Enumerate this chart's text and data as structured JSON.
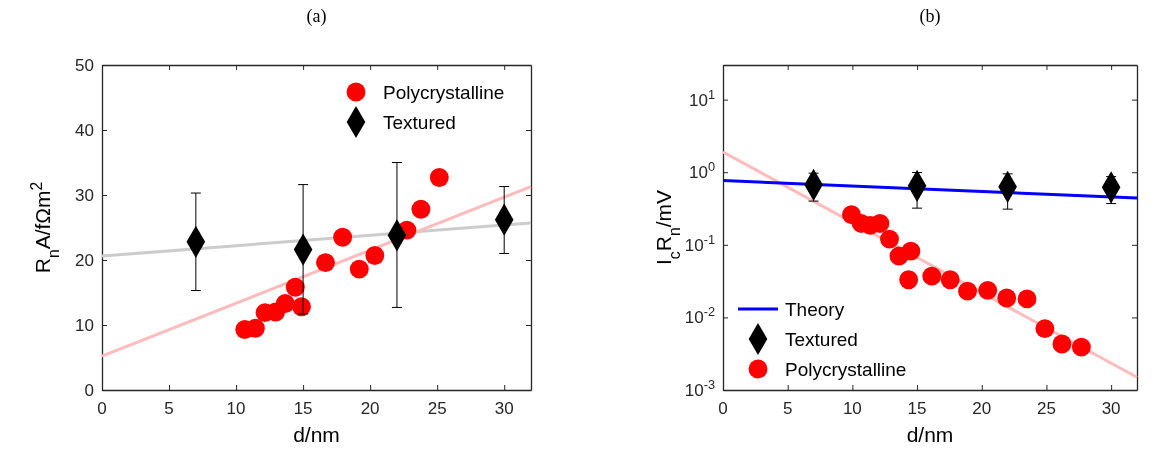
{
  "chart_data": [
    {
      "type": "scatter",
      "title": "(a)",
      "xlabel": "d/nm",
      "ylabel": "R$_{n}$A/fΩm$^{2}$",
      "xlim": [
        0,
        32
      ],
      "xticks": [
        0,
        5,
        10,
        15,
        20,
        25,
        30
      ],
      "ylim": [
        0,
        50
      ],
      "yticks": [
        0,
        10,
        20,
        30,
        40,
        50
      ],
      "grid": false,
      "legend": "top right",
      "series": [
        {
          "type": "line",
          "color": "#cccccc",
          "x": [
            0,
            32
          ],
          "values": [
            20.6,
            25.7
          ],
          "marker": "none",
          "line_style": "solid"
        },
        {
          "type": "line",
          "color": "#ffbbbb",
          "x": [
            0,
            32
          ],
          "values": [
            5.2,
            31.3
          ],
          "marker": "none",
          "line_style": "solid"
        },
        {
          "name": "Polycrystalline",
          "color": "#ff0000",
          "marker": "circle",
          "x": [
            10.65,
            11.44,
            12.16,
            12.95,
            13.67,
            14.42,
            14.88,
            16.67,
            17.95,
            19.19,
            20.35,
            22.74,
            23.79,
            25.16
          ],
          "values": [
            9.3,
            9.5,
            11.9,
            12.0,
            13.3,
            15.8,
            12.8,
            19.6,
            23.5,
            18.6,
            20.7,
            24.6,
            27.8,
            32.7
          ]
        },
        {
          "name": "Textured",
          "color": "#000000",
          "marker": "diamond",
          "x": [
            7,
            15,
            22,
            30
          ],
          "values": [
            22.8,
            21.6,
            23.8,
            26.2
          ],
          "errors": [
            [
              15.3,
              30.3
            ],
            [
              11.7,
              31.6
            ],
            [
              12.7,
              35.0
            ],
            [
              21.0,
              31.3
            ]
          ]
        }
      ]
    },
    {
      "type": "scatter",
      "title": "(b)",
      "xlabel": "d/nm",
      "ylabel": "I$_{c}$R$_{n}$/mV",
      "log": "y",
      "xlim": [
        0,
        32
      ],
      "xticks": [
        0,
        5,
        10,
        15,
        20,
        25,
        30
      ],
      "ylim": [
        0.001,
        30
      ],
      "yticks": [
        {
          "value": 0.001,
          "label": "10$^{-3}$"
        },
        {
          "value": 0.01,
          "label": "10$^{-2}$"
        },
        {
          "value": 0.1,
          "label": "10$^{-1}$"
        },
        {
          "value": 1,
          "label": "10$^{0}$"
        },
        {
          "value": 10,
          "label": "10$^{1}$"
        }
      ],
      "grid": false,
      "legend": "bottom left",
      "series": [
        {
          "type": "line",
          "color": "#ffbbbb",
          "x": [
            0,
            32
          ],
          "values": [
            1.9,
            0.0015
          ],
          "marker": "none",
          "line_style": "solid"
        },
        {
          "name": "Theory",
          "type": "line",
          "color": "#0000ff",
          "x": [
            0,
            32
          ],
          "values": [
            0.77,
            0.44
          ],
          "marker": "none",
          "line_style": "solid"
        },
        {
          "name": "Textured",
          "color": "#000000",
          "marker": "diamond",
          "x": [
            7,
            15,
            22,
            30
          ],
          "values": [
            0.67,
            0.65,
            0.63,
            0.62
          ],
          "errors": [
            [
              0.4,
              0.97
            ],
            [
              0.32,
              0.99
            ],
            [
              0.31,
              0.95
            ],
            [
              0.37,
              0.87
            ]
          ]
        },
        {
          "name": "Polycrystalline",
          "color": "#ff0000",
          "marker": "circle",
          "x": [
            9.93,
            10.68,
            11.38,
            12.13,
            12.87,
            13.6,
            14.35,
            14.52,
            16.14,
            17.56,
            18.9,
            20.46,
            21.93,
            23.5,
            24.88,
            26.2,
            27.7
          ],
          "values": [
            0.26,
            0.197,
            0.185,
            0.197,
            0.12,
            0.07,
            0.033,
            0.082,
            0.037,
            0.033,
            0.023,
            0.0236,
            0.0185,
            0.018,
            0.007,
            0.0043,
            0.0039
          ]
        }
      ]
    }
  ]
}
